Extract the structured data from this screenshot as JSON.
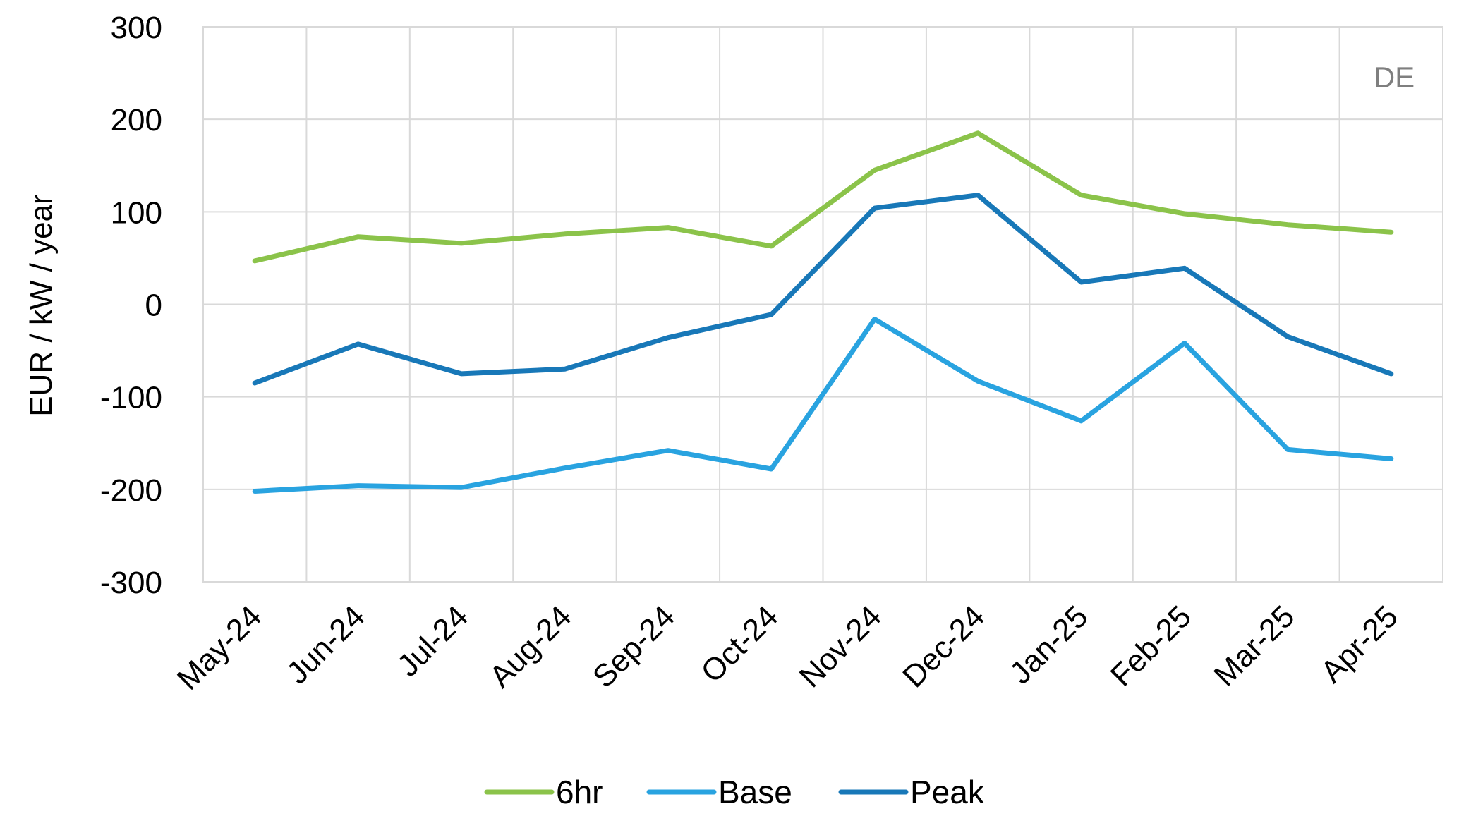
{
  "chart_data": {
    "type": "line",
    "title": "",
    "annotation": "DE",
    "xlabel": "",
    "ylabel": "EUR / kW / year",
    "ylim": [
      -300,
      300
    ],
    "yticks": [
      300,
      200,
      100,
      0,
      -100,
      -200,
      -300
    ],
    "ytick_labels": [
      "300",
      "200",
      "100",
      "0",
      "-100",
      "-200",
      "-300"
    ],
    "grid": true,
    "legend_position": "bottom",
    "categories": [
      "May-24",
      "Jun-24",
      "Jul-24",
      "Aug-24",
      "Sep-24",
      "Oct-24",
      "Nov-24",
      "Dec-24",
      "Jan-25",
      "Feb-25",
      "Mar-25",
      "Apr-25"
    ],
    "series": [
      {
        "name": "6hr",
        "color": "#8bc34a",
        "values": [
          47,
          73,
          66,
          76,
          83,
          63,
          145,
          185,
          118,
          98,
          86,
          78
        ]
      },
      {
        "name": "Base",
        "color": "#29a3e0",
        "values": [
          -202,
          -196,
          -198,
          -177,
          -158,
          -178,
          -16,
          -83,
          -126,
          -42,
          -157,
          -167
        ]
      },
      {
        "name": "Peak",
        "color": "#1878b8",
        "values": [
          -85,
          -43,
          -75,
          -70,
          -36,
          -11,
          104,
          118,
          24,
          39,
          -35,
          -75
        ]
      }
    ]
  }
}
